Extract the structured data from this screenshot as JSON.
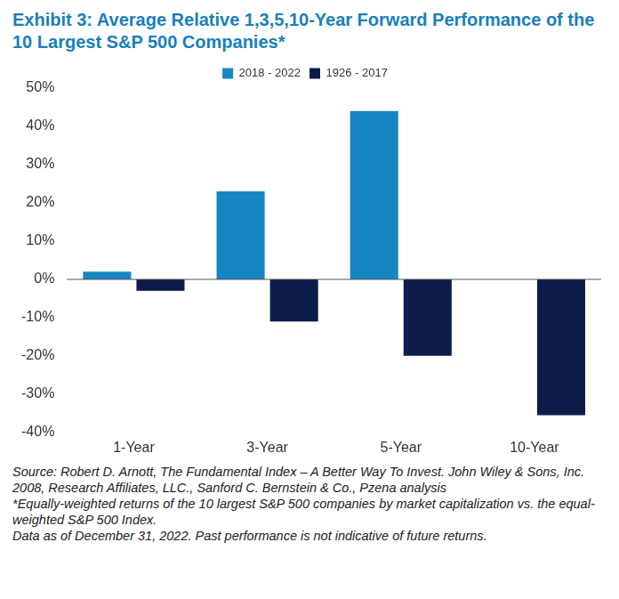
{
  "chart_data": {
    "type": "bar",
    "title": "Exhibit 3: Average Relative 1,3,5,10-Year Forward Performance of the 10 Largest S&P 500 Companies*",
    "categories": [
      "1-Year",
      "3-Year",
      "5-Year",
      "10-Year"
    ],
    "series": [
      {
        "name": "2018 - 2022",
        "color": "#1686c2",
        "values": [
          2,
          23,
          44,
          null
        ]
      },
      {
        "name": "1926 - 2017",
        "color": "#0c1d4a",
        "values": [
          -3,
          -11,
          -20,
          -35.5
        ]
      }
    ],
    "ylim": [
      -40,
      50
    ],
    "yticks": [
      {
        "value": -40,
        "label": "-40%"
      },
      {
        "value": -30,
        "label": "-30%"
      },
      {
        "value": -20,
        "label": "-20%"
      },
      {
        "value": -10,
        "label": "-10%"
      },
      {
        "value": 0,
        "label": "0%"
      },
      {
        "value": 10,
        "label": "10%"
      },
      {
        "value": 20,
        "label": "20%"
      },
      {
        "value": 30,
        "label": "30%"
      },
      {
        "value": 40,
        "label": "40%"
      },
      {
        "value": 50,
        "label": "50%"
      }
    ],
    "grid": false,
    "legend": "top",
    "notes": [
      "Source: Robert D. Arnott, The Fundamental Index – A Better Way To Invest. John Wiley & Sons, Inc. 2008, Research Affiliates, LLC., Sanford C. Bernstein & Co., Pzena analysis",
      "*Equally-weighted returns of the 10 largest S&P 500 companies by market capitalization vs. the equal-weighted S&P 500 Index.",
      "Data as of December 31, 2022. Past performance is not indicative of future returns."
    ]
  }
}
